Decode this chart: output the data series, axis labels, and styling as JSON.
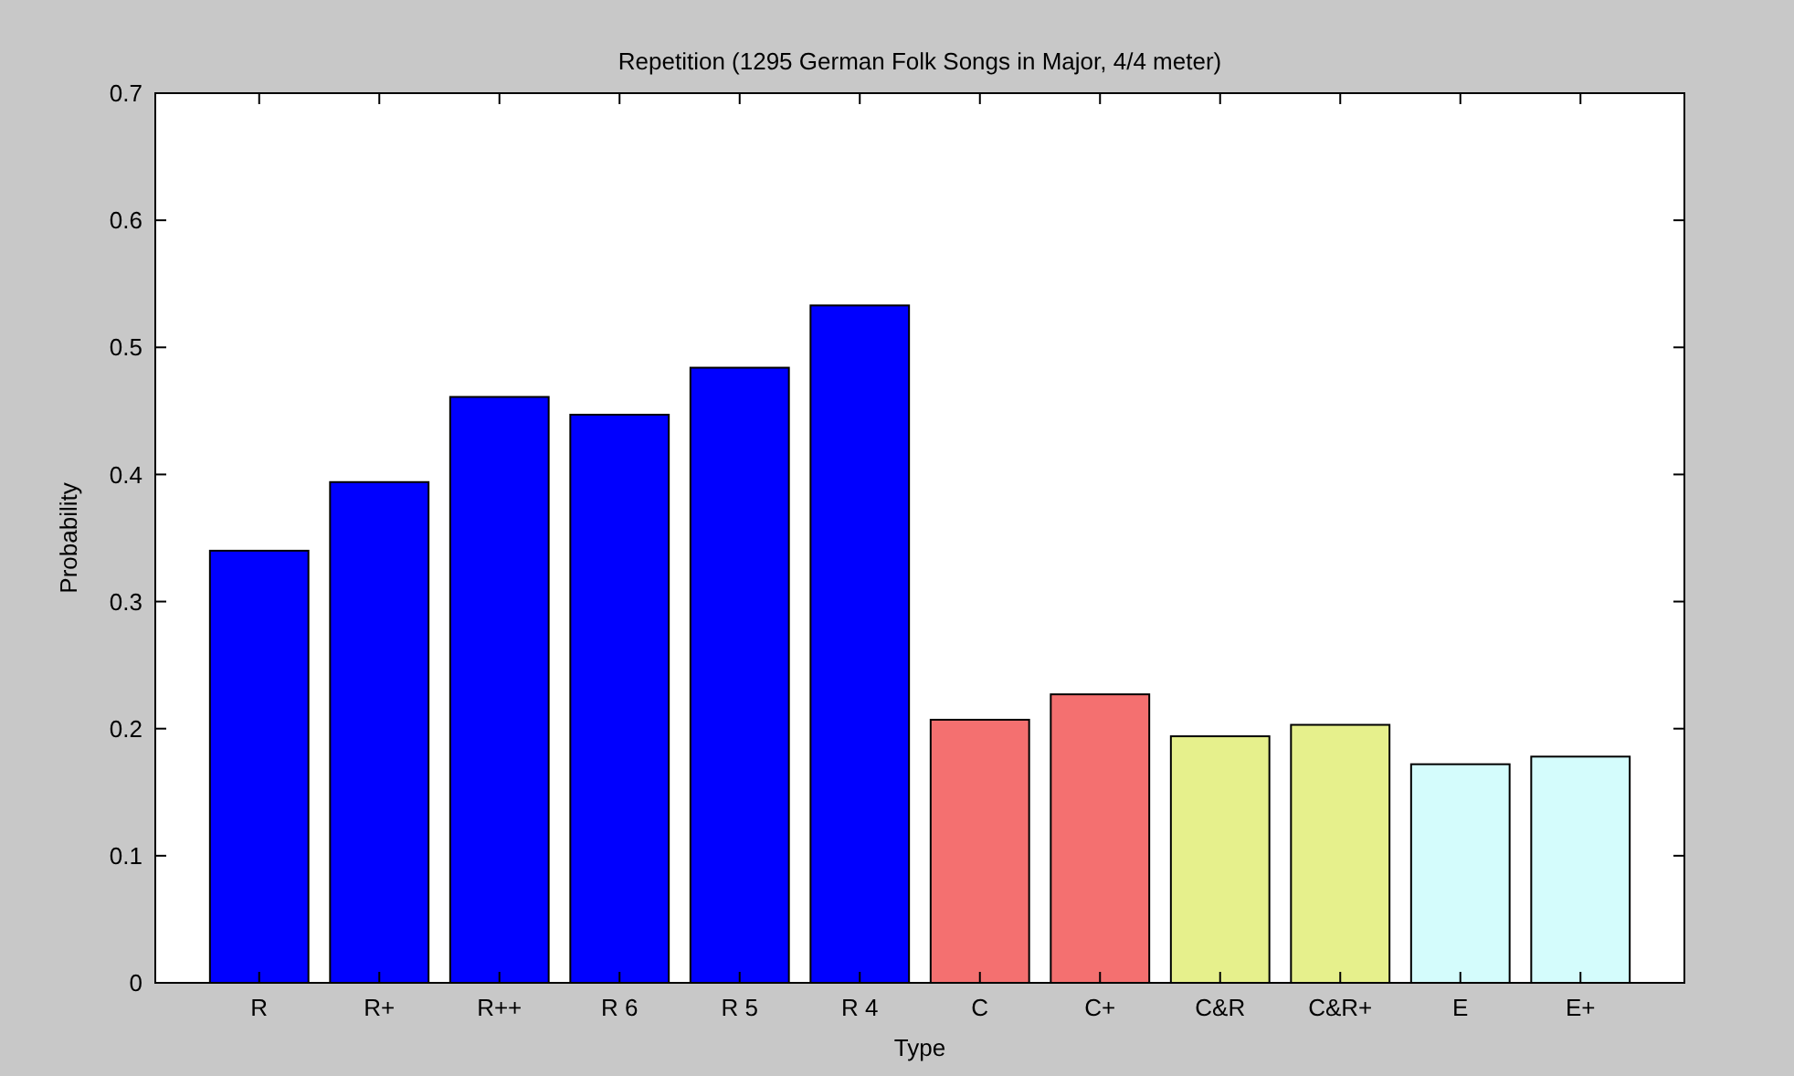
{
  "chart_data": {
    "type": "bar",
    "title": "Repetition (1295 German Folk Songs in Major, 4/4 meter)",
    "xlabel": "Type",
    "ylabel": "Probability",
    "categories": [
      "R",
      "R+",
      "R++",
      "R 6",
      "R 5",
      "R 4",
      "C",
      "C+",
      "C&R",
      "C&R+",
      "E",
      "E+"
    ],
    "values": [
      0.34,
      0.394,
      0.461,
      0.447,
      0.484,
      0.533,
      0.207,
      0.227,
      0.194,
      0.203,
      0.172,
      0.178
    ],
    "colors": [
      "#0000ff",
      "#0000ff",
      "#0000ff",
      "#0000ff",
      "#0000ff",
      "#0000ff",
      "#f47070",
      "#f47070",
      "#e6f08c",
      "#e6f08c",
      "#d4fcfc",
      "#d4fcfc"
    ],
    "ylim": [
      0,
      0.7
    ],
    "yticks": [
      0,
      0.1,
      0.2,
      0.3,
      0.4,
      0.5,
      0.6,
      0.7
    ],
    "grid": false
  }
}
